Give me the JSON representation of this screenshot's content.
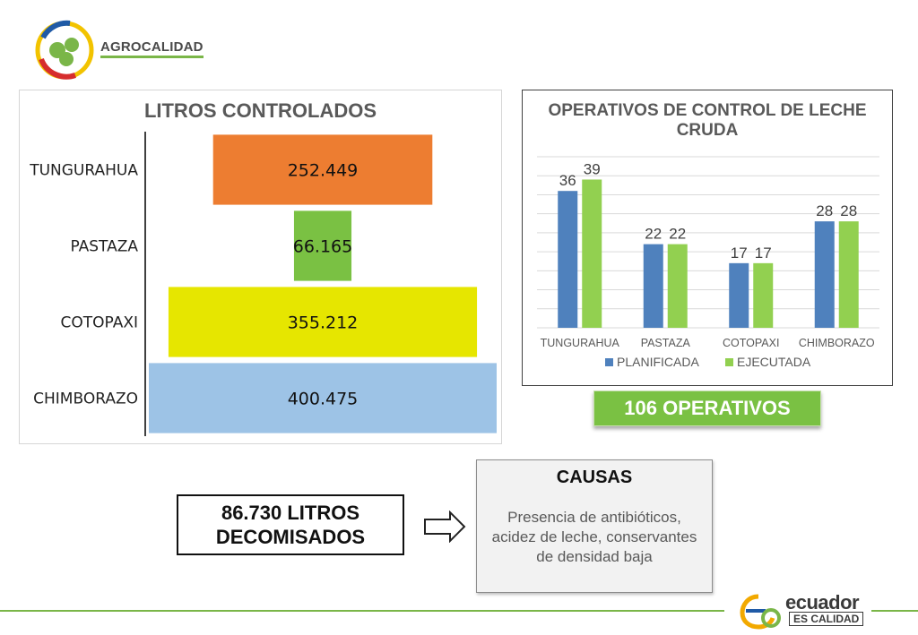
{
  "header": {
    "brand": "AGROCALIDAD",
    "logo_icon": "agrocalidad-logo-icon"
  },
  "left_chart": {
    "title": "LITROS CONTROLADOS"
  },
  "right_chart": {
    "title": "OPERATIVOS DE CONTROL DE LECHE CRUDA"
  },
  "badge": {
    "label": "106 OPERATIVOS",
    "color": "#7ac143"
  },
  "decomisados": {
    "line1": "86.730 LITROS",
    "line2": "DECOMISADOS"
  },
  "causas": {
    "title": "CAUSAS",
    "text": "Presencia de antibióticos, acidez de leche, conservantes de densidad baja"
  },
  "footer": {
    "logo_line1": "ecuador",
    "logo_line2": "ES CALIDAD",
    "logo_icon": "ecuador-es-calidad-logo-icon",
    "accent": "#7ab648"
  },
  "chart_data": [
    {
      "type": "bar",
      "orientation": "horizontal",
      "title": "LITROS CONTROLADOS",
      "categories": [
        "TUNGURAHUA",
        "PASTAZA",
        "COTOPAXI",
        "CHIMBORAZO"
      ],
      "values": [
        252449,
        66165,
        355212,
        400475
      ],
      "value_labels": [
        "252.449",
        "66.165",
        "355.212",
        "400.475"
      ],
      "colors": [
        "#ed7d31",
        "#7ac143",
        "#e6e600",
        "#9dc3e6"
      ],
      "layout": "centered-funnel",
      "grid": false,
      "legend": "none"
    },
    {
      "type": "bar",
      "title": "OPERATIVOS DE CONTROL DE LECHE CRUDA",
      "categories": [
        "TUNGURAHUA",
        "PASTAZA",
        "COTOPAXI",
        "CHIMBORAZO"
      ],
      "series": [
        {
          "name": "PLANIFICADA",
          "values": [
            36,
            22,
            17,
            28
          ],
          "color": "#4f81bd"
        },
        {
          "name": "EJECUTADA",
          "values": [
            39,
            22,
            17,
            28
          ],
          "color": "#92d050"
        }
      ],
      "ylim": [
        0,
        45
      ],
      "grid": true,
      "legend": "bottom"
    }
  ]
}
